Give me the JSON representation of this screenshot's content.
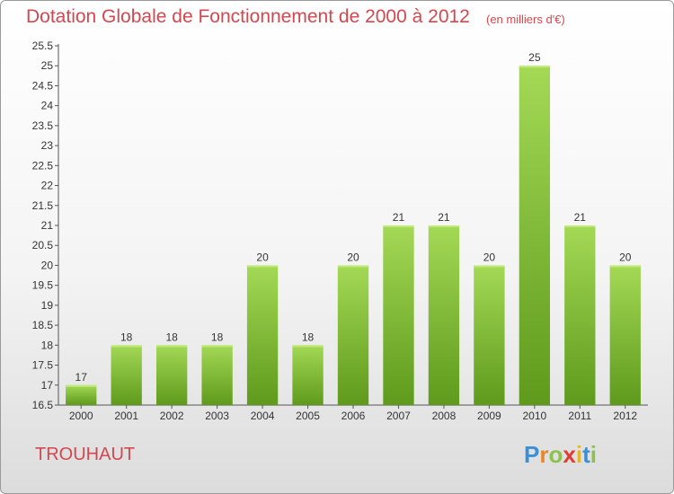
{
  "chart_data": {
    "type": "bar",
    "title": "Dotation Globale de Fonctionnement de 2000 à 2012",
    "subtitle": "(en milliers d'€)",
    "categories": [
      "2000",
      "2001",
      "2002",
      "2003",
      "2004",
      "2005",
      "2006",
      "2007",
      "2008",
      "2009",
      "2010",
      "2011",
      "2012"
    ],
    "values": [
      17,
      18,
      18,
      18,
      20,
      18,
      20,
      21,
      21,
      20,
      25,
      21,
      20
    ],
    "value_labels": [
      "17",
      "18",
      "18",
      "18",
      "20",
      "18",
      "20",
      "21",
      "21",
      "20",
      "25",
      "21",
      "20"
    ],
    "ylim": [
      16.5,
      25.5
    ],
    "yticks": [
      "16.5",
      "17",
      "17.5",
      "18",
      "18.5",
      "19",
      "19.5",
      "20",
      "20.5",
      "21",
      "21.5",
      "22",
      "22.5",
      "23",
      "23.5",
      "24",
      "24.5",
      "25",
      "25.5"
    ],
    "grid": false,
    "bar_color": "#8cc63f",
    "bar_color_dark": "#5f9a1c"
  },
  "footer": {
    "place": "TROUHAUT",
    "logo": "Proxiti"
  },
  "colors": {
    "title": "#d4474f"
  }
}
